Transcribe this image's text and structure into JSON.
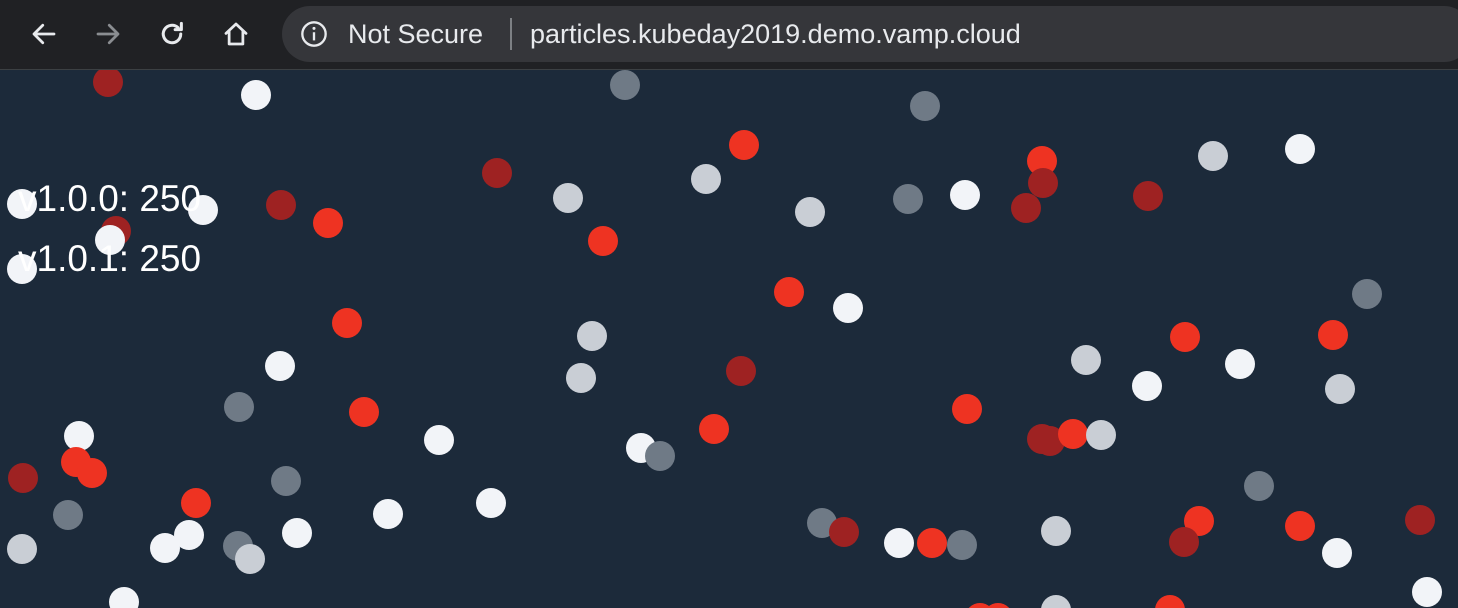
{
  "browser": {
    "security_label": "Not Secure",
    "url": "particles.kubeday2019.demo.vamp.cloud",
    "icons": [
      "back-arrow-icon",
      "forward-arrow-icon",
      "reload-icon",
      "home-icon",
      "info-icon"
    ]
  },
  "app": {
    "versions": [
      {
        "label": "v1.0.0: 250"
      },
      {
        "label": "v1.0.1: 250"
      }
    ],
    "colors": {
      "background": "#1c2a3a",
      "particle_red": "#ee3322",
      "particle_dark_red": "#9e2222",
      "particle_white": "#f2f4f8",
      "particle_light_gray": "#c9ced5",
      "particle_gray": "#6f7a86"
    }
  }
}
